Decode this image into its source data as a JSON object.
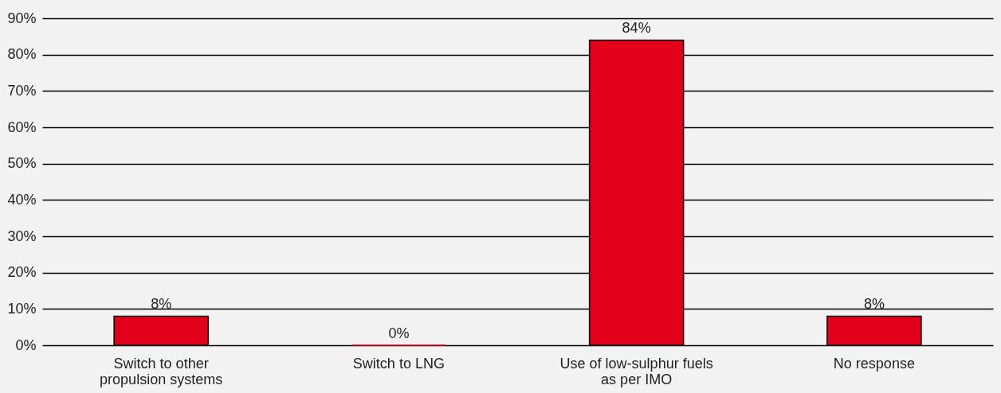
{
  "chart_data": {
    "type": "bar",
    "categories": [
      "Switch to other propulsion systems",
      "Switch to LNG",
      "Use of low-sulphur fuels as per IMO",
      "No response"
    ],
    "values": [
      8,
      0,
      84,
      8
    ],
    "value_labels": [
      "8%",
      "0%",
      "84%",
      "8%"
    ],
    "color": "#e2001a",
    "ylim": [
      0,
      90
    ],
    "yticks": [
      {
        "value": 0,
        "label": "0%"
      },
      {
        "value": 10,
        "label": "10%"
      },
      {
        "value": 20,
        "label": "20%"
      },
      {
        "value": 30,
        "label": "30%"
      },
      {
        "value": 40,
        "label": "40%"
      },
      {
        "value": 50,
        "label": "50%"
      },
      {
        "value": 60,
        "label": "60%"
      },
      {
        "value": 70,
        "label": "70%"
      },
      {
        "value": 80,
        "label": "80%"
      },
      {
        "value": 90,
        "label": "90%"
      }
    ],
    "grid": "y"
  }
}
